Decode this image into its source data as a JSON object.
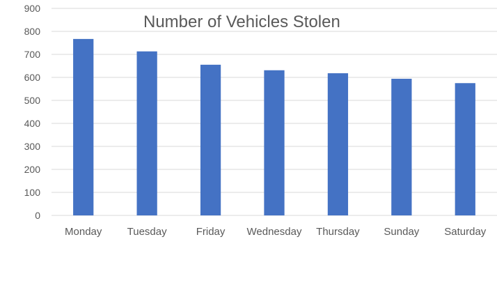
{
  "chart_data": {
    "type": "bar",
    "title": "Number of Vehicles Stolen",
    "xlabel": "",
    "ylabel": "",
    "categories": [
      "Monday",
      "Tuesday",
      "Friday",
      "Wednesday",
      "Thursday",
      "Sunday",
      "Saturday"
    ],
    "series": [
      {
        "name": "Number of Vehicles Stolen",
        "values": [
          767,
          713,
          655,
          631,
          618,
          594,
          575
        ]
      }
    ],
    "ylim": [
      0,
      900
    ],
    "yticks": [
      0,
      100,
      200,
      300,
      400,
      500,
      600,
      700,
      800,
      900
    ],
    "grid": true,
    "legend": "none",
    "colors": {
      "bar": "#4472C4",
      "grid": "#D9D9D9",
      "axis_text": "#595959",
      "title_text": "#595959"
    }
  }
}
